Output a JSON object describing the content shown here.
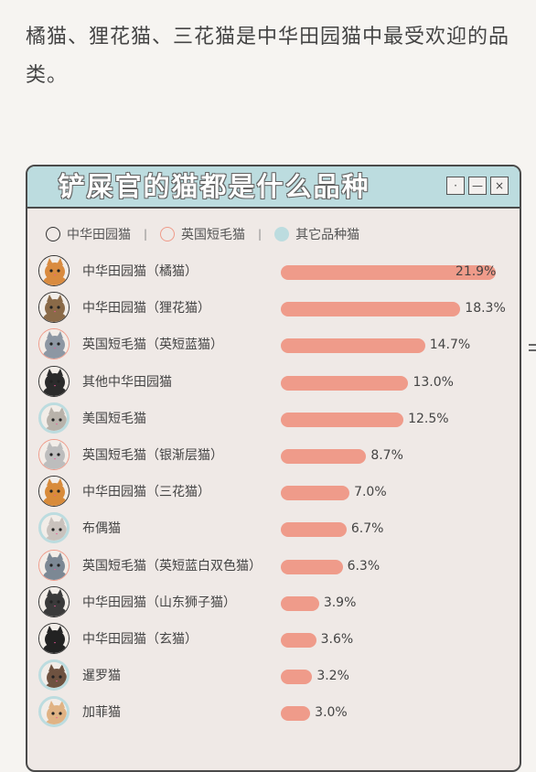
{
  "intro_text": "橘猫、狸花猫、三花猫是中华田园猫中最受欢迎的品类。",
  "window": {
    "title": "铲屎官的猫都是什么品种",
    "buttons": [
      "·",
      "—",
      "×"
    ]
  },
  "legend": [
    {
      "label": "中华田园猫",
      "color": "#333333",
      "style": "ring"
    },
    {
      "label": "英国短毛猫",
      "color": "#ef9b8a",
      "style": "ring"
    },
    {
      "label": "其它品种猫",
      "color": "#bcdcdf",
      "style": "fill"
    }
  ],
  "chart_data": {
    "type": "bar",
    "orientation": "horizontal",
    "title": "铲屎官的猫都是什么品种",
    "categories": [
      "中华田园猫（橘猫）",
      "中华田园猫（狸花猫）",
      "英国短毛猫（英短蓝猫）",
      "其他中华田园猫",
      "美国短毛猫",
      "英国短毛猫（银渐层猫）",
      "中华田园猫（三花猫）",
      "布偶猫",
      "英国短毛猫（英短蓝白双色猫）",
      "中华田园猫（山东狮子猫）",
      "中华田园猫（玄猫）",
      "暹罗猫",
      "加菲猫"
    ],
    "values": [
      21.9,
      18.3,
      14.7,
      13.0,
      12.5,
      8.7,
      7.0,
      6.7,
      6.3,
      3.9,
      3.6,
      3.2,
      3.0
    ],
    "value_labels": [
      "21.9%",
      "18.3%",
      "14.7%",
      "13.0%",
      "12.5%",
      "8.7%",
      "7.0%",
      "6.7%",
      "6.3%",
      "3.9%",
      "3.6%",
      "3.2%",
      "3.0%"
    ],
    "groups": [
      "中华田园猫",
      "中华田园猫",
      "英国短毛猫",
      "中华田园猫",
      "其它品种猫",
      "英国短毛猫",
      "中华田园猫",
      "其它品种猫",
      "英国短毛猫",
      "中华田园猫",
      "中华田园猫",
      "其它品种猫",
      "其它品种猫"
    ],
    "avatar_colors": [
      "#d98b3f",
      "#8a6a48",
      "#8d97a3",
      "#2b2b2b",
      "#b8b2aa",
      "#bdbdbd",
      "#d88b3a",
      "#c9c2bd",
      "#7c8894",
      "#3a3a3a",
      "#222222",
      "#6e5240",
      "#e0b384"
    ],
    "bar_color": "#ef9b8a",
    "xlim": [
      0,
      22
    ]
  }
}
